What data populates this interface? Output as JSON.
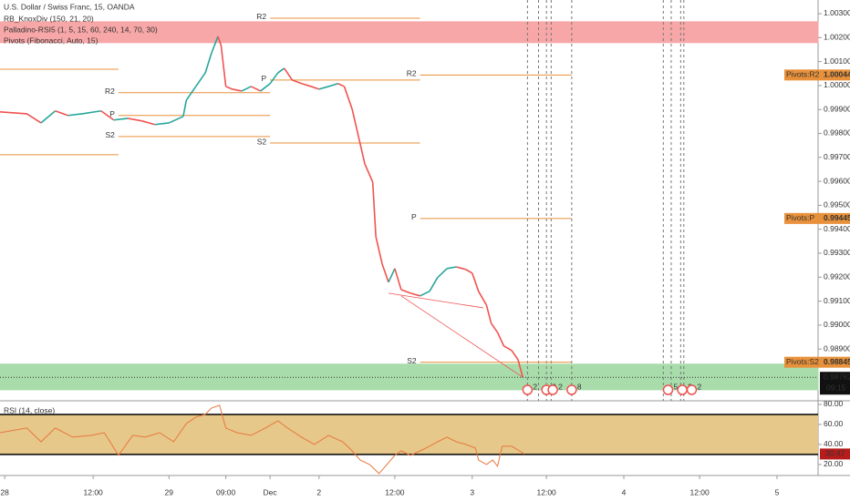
{
  "chart_data": [
    {
      "type": "line",
      "title": "U.S. Dollar / Swiss Franc, 15, OANDA",
      "indicators": [
        "RB_KnoxDiv (150, 21, 20)",
        "Palladino-RSI5 (1, 5, 15, 60, 240, 14, 70, 30)",
        "Pivots (Fibonacci, Auto, 15)"
      ],
      "x": [
        0,
        17,
        26,
        35,
        43,
        52,
        64,
        72,
        81,
        90,
        98,
        107,
        116,
        118,
        124,
        130,
        134,
        138,
        140,
        143,
        147,
        153,
        159,
        165,
        171,
        176,
        180,
        185,
        191,
        197,
        202,
        208,
        214,
        218,
        223,
        227,
        231,
        236,
        238,
        242,
        246,
        250,
        254,
        260,
        266,
        272,
        277,
        283,
        289,
        295,
        299,
        303,
        308,
        311,
        315,
        319,
        324,
        328,
        331
      ],
      "series": [
        {
          "name": "USDCHF",
          "up_color": "#26a69a",
          "down_color": "#ef5350",
          "values": [
            0.9989,
            0.99882,
            0.99844,
            0.99894,
            0.99875,
            0.99882,
            0.99894,
            0.99856,
            0.99863,
            0.99852,
            0.99837,
            0.99844,
            0.99871,
            0.99939,
            0.99996,
            1.00053,
            1.00137,
            1.00205,
            1.00167,
            0.99996,
            0.99985,
            0.99977,
            0.99996,
            0.99977,
            1.00008,
            1.00053,
            1.00072,
            1.00023,
            1.00008,
            0.99996,
            0.99985,
            0.99996,
            1.00008,
            0.99996,
            0.99901,
            0.99787,
            0.99673,
            0.99597,
            0.99369,
            0.99255,
            0.99179,
            0.99236,
            0.99148,
            0.99133,
            0.99122,
            0.99141,
            0.99198,
            0.99236,
            0.99243,
            0.99232,
            0.99217,
            0.99141,
            0.99084,
            0.99008,
            0.9897,
            0.98913,
            0.98894,
            0.98856,
            0.98782
          ]
        }
      ],
      "xlim": [
        0,
        518
      ],
      "ylim": [
        0.98684,
        1.00357
      ],
      "yticks": [
        {
          "value": 0.989,
          "label": "0.98900"
        },
        {
          "value": 0.99,
          "label": "0.99000"
        },
        {
          "value": 0.991,
          "label": "0.99100"
        },
        {
          "value": 0.992,
          "label": "0.99200"
        },
        {
          "value": 0.993,
          "label": "0.99300"
        },
        {
          "value": 0.994,
          "label": "0.99400"
        },
        {
          "value": 0.995,
          "label": "0.99500"
        },
        {
          "value": 0.996,
          "label": "0.99600"
        },
        {
          "value": 0.997,
          "label": "0.99700"
        },
        {
          "value": 0.998,
          "label": "0.99800"
        },
        {
          "value": 0.999,
          "label": "0.99900"
        },
        {
          "value": 1.0,
          "label": "1.00000"
        },
        {
          "value": 1.001,
          "label": "1.00100"
        },
        {
          "value": 1.002,
          "label": "1.00200"
        },
        {
          "value": 1.003,
          "label": "1.00300"
        }
      ],
      "xticks": [
        {
          "value": 3,
          "label": "28"
        },
        {
          "value": 59,
          "label": "12:00"
        },
        {
          "value": 107,
          "label": "29"
        },
        {
          "value": 143,
          "label": "09:00"
        },
        {
          "value": 171,
          "label": "Dec"
        },
        {
          "value": 202,
          "label": "2"
        },
        {
          "value": 250,
          "label": "12:00"
        },
        {
          "value": 299,
          "label": "3"
        },
        {
          "value": 346,
          "label": "12:00"
        },
        {
          "value": 395,
          "label": "4"
        },
        {
          "value": 443,
          "label": "12:00"
        },
        {
          "value": 492,
          "label": "5"
        }
      ],
      "zones": [
        {
          "color": "#f7a7a7",
          "ylim": [
            1.00179,
            1.00266
          ]
        },
        {
          "color": "#a9dcab",
          "ylim": [
            0.9873,
            0.98837
          ]
        }
      ],
      "pivot_color": "#e8913a",
      "pivots": [
        {
          "start": 0,
          "end": 75,
          "levels": [
            {
              "name": null,
              "value": 1.00068
            },
            {
              "name": null,
              "value": 0.99711
            }
          ]
        },
        {
          "start": 75,
          "end": 171,
          "levels": [
            {
              "name": "R2",
              "value": 0.9997
            },
            {
              "name": "P",
              "value": 0.99875
            },
            {
              "name": "S2",
              "value": 0.99787
            }
          ]
        },
        {
          "start": 171,
          "end": 266,
          "levels": [
            {
              "name": "R2",
              "value": 1.00281
            },
            {
              "name": "P",
              "value": 1.00023
            },
            {
              "name": "S2",
              "value": 0.9976
            }
          ]
        },
        {
          "start": 266,
          "end": 362,
          "levels": [
            {
              "name": "R2",
              "value": 1.00044,
              "tag": "Pivots:R2"
            },
            {
              "name": "P",
              "value": 0.99445,
              "tag": "Pivots:P"
            },
            {
              "name": "S2",
              "value": 0.98845,
              "tag": "Pivots:S2"
            }
          ]
        }
      ],
      "divergences": [
        {
          "x": [
            246,
            306
          ],
          "y": [
            0.99133,
            0.99072
          ]
        },
        {
          "x": [
            254,
            331
          ],
          "y": [
            0.99122,
            0.98782
          ]
        }
      ],
      "event_lines": [
        334,
        341,
        346,
        349,
        362,
        420,
        425,
        431,
        433
      ],
      "badges": [
        {
          "x": 334,
          "label": "2"
        },
        {
          "x": 346,
          "label": "2"
        },
        {
          "x": 350,
          "label": "2"
        },
        {
          "x": 362,
          "label": "8"
        },
        {
          "x": 423,
          "label": "5"
        },
        {
          "x": 432,
          "label": "2"
        },
        {
          "x": 438,
          "label": "2"
        }
      ],
      "countdown": "09:15"
    },
    {
      "type": "line",
      "title": "RSI (14, close)",
      "x": [
        0,
        17,
        26,
        35,
        46,
        58,
        66,
        75,
        84,
        92,
        101,
        110,
        118,
        124,
        130,
        134,
        139,
        143,
        150,
        159,
        168,
        176,
        182,
        191,
        199,
        208,
        217,
        223,
        228,
        234,
        240,
        246,
        250,
        254,
        260,
        266,
        272,
        277,
        283,
        289,
        295,
        301,
        303,
        308,
        312,
        315,
        318,
        324,
        329,
        332
      ],
      "series": [
        {
          "name": "RSI",
          "color": "#e8773f",
          "values": [
            51.8,
            56.4,
            42.7,
            56.4,
            47.3,
            49.1,
            51.8,
            29.1,
            49.1,
            47.3,
            51.8,
            42.7,
            60.9,
            67.3,
            70.0,
            76.4,
            79.1,
            56.4,
            51.8,
            49.1,
            56.4,
            63.6,
            56.4,
            47.3,
            40.0,
            49.1,
            42.7,
            33.6,
            24.5,
            20.0,
            10.9,
            21.8,
            29.1,
            33.6,
            29.1,
            33.6,
            38.2,
            42.7,
            47.3,
            42.7,
            40.0,
            36.4,
            24.5,
            20.0,
            24.5,
            18.2,
            38.2,
            38.2,
            33.6,
            30.47
          ]
        }
      ],
      "band": [
        30,
        70
      ],
      "band_color": "#e6c88a",
      "ylim": [
        9,
        83.6
      ],
      "yticks": [
        {
          "value": 20,
          "label": "20.00"
        },
        {
          "value": 40,
          "label": "40.00"
        },
        {
          "value": 60,
          "label": "60.00"
        },
        {
          "value": 80,
          "label": "80.00"
        }
      ]
    }
  ]
}
